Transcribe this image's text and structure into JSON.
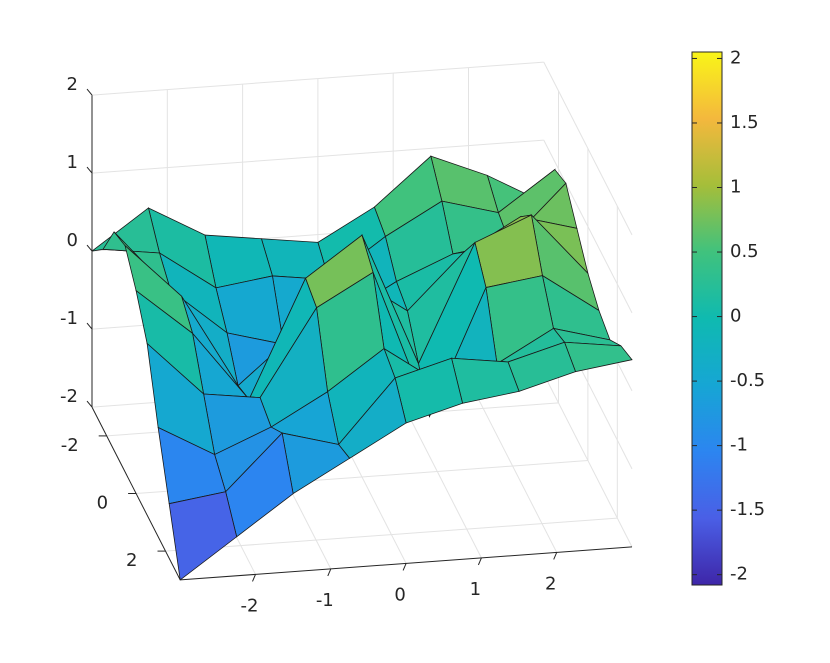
{
  "chart_data": {
    "type": "surface",
    "x": [
      -3,
      -2.25,
      -1.5,
      -0.75,
      0,
      0.75,
      1.5,
      2.25,
      3
    ],
    "y": [
      -3,
      -2.25,
      -1.5,
      -0.75,
      0,
      0.75,
      1.5,
      2.25,
      3
    ],
    "z": [
      [
        0,
        0.5,
        0.1,
        0,
        -0.1,
        0.3,
        0.9,
        0.6,
        0.2
      ],
      [
        0.3,
        0.2,
        -0.3,
        -0.2,
        -0.3,
        0.2,
        0.6,
        0.4,
        0.9
      ],
      [
        0.8,
        0,
        -0.6,
        -0.8,
        -0.5,
        -0.1,
        0.2,
        0.3,
        1
      ],
      [
        0.9,
        0.2,
        -1,
        -0.4,
        0.3,
        -0.2,
        0.5,
        0.9,
        0.7
      ],
      [
        0.6,
        0,
        -0.9,
        0.6,
        1.1,
        -0.6,
        0.9,
        1.2,
        0.4
      ],
      [
        0.2,
        -0.5,
        -0.6,
        0.5,
        0.9,
        -1,
        0.6,
        0.7,
        0.2
      ],
      [
        -0.6,
        -1,
        -0.7,
        -0.3,
        0.2,
        -0.3,
        -0.1,
        0.3,
        0.1
      ],
      [
        -1.3,
        -1.2,
        -0.5,
        -0.7,
        0.1,
        0.3,
        0.2,
        0.4,
        0.3
      ],
      [
        -2,
        -1.5,
        -1,
        -0.6,
        -0.2,
        0,
        0.1,
        0.3,
        0.4
      ]
    ],
    "xlim": [
      -3,
      3
    ],
    "ylim": [
      -3,
      3
    ],
    "zlim": [
      -2,
      2
    ],
    "xticks": [
      -2,
      -1,
      0,
      1,
      2
    ],
    "yticks": [
      -2,
      0,
      2
    ],
    "zticks": [
      -2,
      -1,
      0,
      1,
      2
    ],
    "clim": [
      -2.08,
      2.05
    ],
    "cticks": [
      -2,
      -1.5,
      -1,
      -0.5,
      0,
      0.5,
      1,
      1.5,
      2
    ],
    "colormap": [
      "#3e26a8",
      "#4a5fe6",
      "#2c85f0",
      "#16a6d4",
      "#0fbab0",
      "#40c27d",
      "#a5be3a",
      "#f4b83d",
      "#f9f518"
    ],
    "grid": true
  }
}
